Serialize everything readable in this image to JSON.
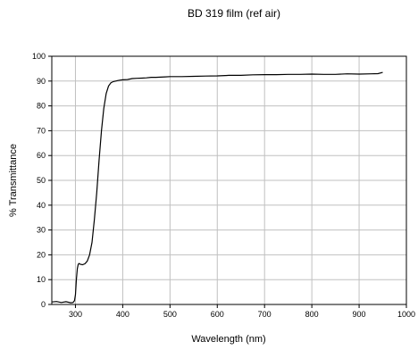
{
  "chart_data": {
    "type": "line",
    "title": "BD 319 film (ref air)",
    "xlabel": "Wavelength (nm)",
    "ylabel": "% Transmittance",
    "xlim": [
      250,
      1000
    ],
    "ylim": [
      0,
      100
    ],
    "x_ticks": [
      300,
      400,
      500,
      600,
      700,
      800,
      900,
      1000
    ],
    "y_ticks": [
      0,
      10,
      20,
      30,
      40,
      50,
      60,
      70,
      80,
      90,
      100
    ],
    "grid": true,
    "legend": "none",
    "line_color": "#000000",
    "series": [
      {
        "x": [
          250,
          260,
          270,
          280,
          290,
          295,
          298,
          300,
          302,
          304,
          306,
          308,
          310,
          315,
          320,
          325,
          330,
          335,
          340,
          345,
          350,
          355,
          360,
          365,
          370,
          375,
          380,
          385,
          390,
          395,
          400,
          410,
          420,
          430,
          440,
          450,
          460,
          470,
          480,
          490,
          500,
          525,
          550,
          575,
          600,
          625,
          650,
          675,
          700,
          725,
          750,
          775,
          800,
          825,
          850,
          875,
          900,
          925,
          940,
          950
        ],
        "y": [
          1,
          1.2,
          0.8,
          1.1,
          0.7,
          0.8,
          1.5,
          4,
          10,
          14.5,
          16.2,
          16.5,
          16.2,
          16,
          16.4,
          17.5,
          20,
          25,
          34,
          45,
          58,
          70,
          79,
          85,
          88,
          89.3,
          89.8,
          90,
          90.2,
          90.4,
          90.5,
          90.6,
          91,
          91.1,
          91.2,
          91.3,
          91.5,
          91.5,
          91.6,
          91.7,
          91.8,
          91.8,
          91.9,
          92,
          92.1,
          92.3,
          92.3,
          92.5,
          92.6,
          92.6,
          92.7,
          92.7,
          92.8,
          92.7,
          92.7,
          92.9,
          92.8,
          92.9,
          93,
          93.5
        ]
      }
    ]
  }
}
